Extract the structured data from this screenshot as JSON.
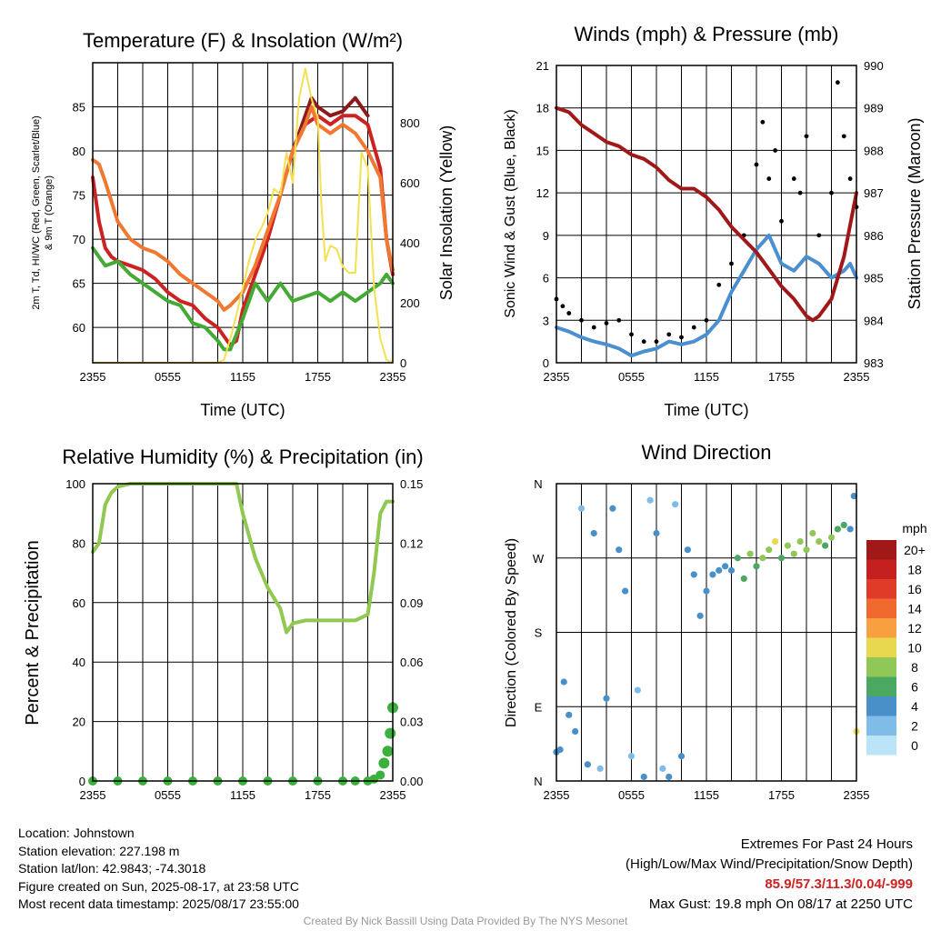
{
  "info": {
    "location": "Location: Johnstown",
    "elevation": "Station elevation: 227.198 m",
    "latlon": "Station lat/lon: 42.9843; -74.3018",
    "created": "Figure created on Sun, 2025-08-17, at 23:58 UTC",
    "recent": "Most recent data timestamp: 2025/08/17 23:55:00"
  },
  "extremes": {
    "title": "Extremes For Past 24 Hours",
    "subtitle": "(High/Low/Max Wind/Precipitation/Snow Depth)",
    "values": "85.9/57.3/11.3/0.04/-999",
    "gust": "Max Gust: 19.8 mph On 08/17 at 2250 UTC"
  },
  "credit": "Created By Nick Bassill Using Data Provided By The NYS Mesonet",
  "colors": {
    "temp": "#cc2222",
    "dew": "#44aa33",
    "hiwc": "#8b1a1a",
    "temp9m": "#f07830",
    "solar": "#f5e050",
    "wind": "#4a90d0",
    "gust": "#000000",
    "pressure": "#a01818",
    "rh": "#90c850",
    "precip": "#3cb03c"
  },
  "chart_data": [
    {
      "type": "line",
      "title": "Temperature (F) & Insolation (W/m²)",
      "xlabel": "Time (UTC)",
      "ylabel_left": "2m T, Td, HI/WC (Red, Green, Scarlet/Blue) & 9m T (Orange)",
      "ylabel_right": "Solar Insolation (Yellow)",
      "x_ticks": [
        "2355",
        "0555",
        "1155",
        "1755",
        "2355"
      ],
      "ylim": [
        56,
        90
      ],
      "y_ticks": [
        60,
        65,
        70,
        75,
        80,
        85
      ],
      "ylim_right": [
        0,
        1000
      ],
      "y_ticks_right": [
        0,
        200,
        400,
        600,
        800
      ],
      "series": [
        {
          "name": "2m T",
          "axis": "left",
          "color": "#cc2222",
          "x": [
            0,
            0.5,
            1,
            1.5,
            2,
            3,
            4,
            5,
            6,
            7,
            8,
            9,
            10,
            11,
            11.5,
            12,
            13,
            14,
            15,
            16,
            17,
            18,
            19,
            20,
            21,
            22,
            23,
            23.5,
            24
          ],
          "values": [
            77,
            72,
            69,
            68,
            67.5,
            67,
            66.5,
            65.5,
            64,
            63,
            62.5,
            61,
            60,
            58,
            58.5,
            62,
            66,
            70,
            75,
            80,
            83,
            84,
            83,
            84,
            84,
            83,
            78,
            70,
            66
          ]
        },
        {
          "name": "Td",
          "axis": "left",
          "color": "#44aa33",
          "x": [
            0,
            1,
            2,
            3,
            4,
            5,
            6,
            7,
            8,
            9,
            10,
            10.5,
            11,
            12,
            13,
            14,
            15,
            16,
            17,
            18,
            19,
            20,
            21,
            22,
            23,
            23.5,
            24
          ],
          "values": [
            69,
            67,
            67.5,
            66,
            65,
            64,
            63,
            62.5,
            60.5,
            60,
            58.5,
            57.5,
            57.5,
            61,
            65,
            63,
            65,
            63,
            63.5,
            64,
            63,
            64,
            63,
            64,
            65,
            66,
            65
          ]
        },
        {
          "name": "HI/WC",
          "axis": "left",
          "color": "#8b1a1a",
          "x": [
            16,
            17,
            17.5,
            18,
            19,
            20,
            21,
            22
          ],
          "values": [
            80,
            84,
            86,
            85,
            84,
            84.5,
            86,
            84
          ]
        },
        {
          "name": "9m T",
          "axis": "left",
          "color": "#f07830",
          "x": [
            0,
            0.5,
            1,
            2,
            3,
            4,
            5,
            6,
            7,
            8,
            9,
            10,
            10.5,
            11,
            12,
            13,
            14,
            15,
            16,
            17,
            17.5,
            18,
            19,
            20,
            21,
            22,
            23,
            23.5,
            24
          ],
          "values": [
            79,
            78.5,
            76.5,
            72,
            70,
            69,
            68.5,
            67.5,
            66,
            65,
            64,
            63,
            62,
            62.5,
            64,
            67,
            71,
            75,
            80,
            83,
            85,
            83,
            82,
            83,
            82,
            80,
            77,
            70,
            66.5
          ]
        },
        {
          "name": "Solar",
          "axis": "right",
          "color": "#f5e050",
          "x": [
            0,
            10,
            10.5,
            11,
            11.5,
            12,
            12.5,
            13,
            13.5,
            14,
            14.5,
            15,
            15.5,
            16,
            16.5,
            17,
            17.5,
            18,
            18.3,
            18.6,
            19,
            19.5,
            20,
            20.5,
            21,
            21.5,
            22,
            22.5,
            23,
            23.5,
            24
          ],
          "values": [
            0,
            0,
            10,
            80,
            160,
            250,
            340,
            410,
            450,
            500,
            580,
            560,
            700,
            600,
            880,
            980,
            880,
            820,
            520,
            340,
            390,
            380,
            320,
            300,
            300,
            700,
            650,
            250,
            80,
            10,
            0
          ]
        }
      ]
    },
    {
      "type": "line",
      "title": "Winds (mph) & Pressure (mb)",
      "xlabel": "Time (UTC)",
      "ylabel_left": "Sonic Wind & Gust (Blue, Black)",
      "ylabel_right": "Station Pressure (Maroon)",
      "x_ticks": [
        "2355",
        "0555",
        "1155",
        "1755",
        "2355"
      ],
      "ylim": [
        0,
        21
      ],
      "y_ticks": [
        0,
        3,
        6,
        9,
        12,
        15,
        18,
        21
      ],
      "ylim_right": [
        983,
        990
      ],
      "y_ticks_right": [
        983,
        984,
        985,
        986,
        987,
        988,
        989,
        990
      ],
      "series": [
        {
          "name": "Sonic Wind",
          "axis": "left",
          "color": "#4a90d0",
          "x": [
            0,
            1,
            2,
            3,
            4,
            5,
            6,
            7,
            8,
            9,
            10,
            11,
            12,
            13,
            13.5,
            14,
            15,
            16,
            17,
            18,
            19,
            20,
            21,
            22,
            23,
            23.5,
            24
          ],
          "values": [
            2.5,
            2.2,
            1.8,
            1.5,
            1.3,
            1,
            0.5,
            0.8,
            1,
            1.5,
            1.3,
            1.5,
            2,
            3,
            4,
            5,
            6.5,
            8,
            9,
            7,
            6.5,
            7.5,
            7,
            6,
            6.5,
            7,
            6
          ]
        },
        {
          "name": "Gust",
          "axis": "left",
          "color": "#000000",
          "style": "dots",
          "x": [
            0,
            0.5,
            1,
            2,
            3,
            4,
            5,
            6,
            7,
            8,
            9,
            10,
            11,
            12,
            13,
            14,
            15,
            16,
            16.5,
            17,
            17.5,
            18,
            19,
            19.5,
            20,
            21,
            22,
            22.5,
            23,
            23.5,
            24
          ],
          "values": [
            4.5,
            4,
            3.5,
            3,
            2.5,
            2.8,
            3,
            2,
            1.5,
            1.5,
            2,
            1.8,
            2.5,
            3,
            5.5,
            7,
            9,
            14,
            17,
            13,
            15,
            10,
            13,
            12,
            16,
            9,
            12,
            19.8,
            16,
            13,
            11
          ]
        },
        {
          "name": "Pressure",
          "axis": "right",
          "color": "#a01818",
          "x": [
            0,
            1,
            2,
            3,
            4,
            5,
            6,
            7,
            8,
            9,
            10,
            11,
            12,
            13,
            14,
            15,
            16,
            17,
            18,
            19,
            20,
            20.5,
            21,
            22,
            23,
            24
          ],
          "values": [
            989,
            988.9,
            988.6,
            988.4,
            988.2,
            988.1,
            987.9,
            987.8,
            987.6,
            987.3,
            987.1,
            987.1,
            986.9,
            986.6,
            986.2,
            985.9,
            985.6,
            985.2,
            984.8,
            984.5,
            984.1,
            984.0,
            984.1,
            984.5,
            985.5,
            987.0
          ]
        }
      ]
    },
    {
      "type": "line",
      "title": "Relative Humidity (%) & Precipitation (in)",
      "ylabel_left": "Percent & Precipitation",
      "x_ticks": [
        "2355",
        "0555",
        "1155",
        "1755",
        "2355"
      ],
      "ylim": [
        0,
        100
      ],
      "y_ticks": [
        0,
        20,
        40,
        60,
        80,
        100
      ],
      "ylim_right": [
        0,
        0.15
      ],
      "y_ticks_right": [
        "0.00",
        "0.03",
        "0.06",
        "0.09",
        "0.12",
        "0.15"
      ],
      "series": [
        {
          "name": "RH",
          "axis": "left",
          "color": "#90c850",
          "x": [
            0,
            0.5,
            1,
            1.5,
            2,
            3,
            4,
            5,
            6,
            7,
            8,
            9,
            10,
            11,
            11.5,
            12,
            13,
            14,
            15,
            15.5,
            16,
            17,
            18,
            19,
            20,
            21,
            22,
            22.5,
            23,
            23.5,
            24
          ],
          "values": [
            77,
            80,
            93,
            97,
            99,
            100,
            100,
            100,
            100,
            100,
            100,
            100,
            100,
            100,
            100,
            90,
            75,
            65,
            58,
            50,
            53,
            54,
            54,
            54,
            54,
            54,
            56,
            70,
            90,
            94,
            94
          ]
        },
        {
          "name": "Precip",
          "axis": "right",
          "color": "#3cb03c",
          "x": [
            0,
            2,
            4,
            6,
            8,
            10,
            12,
            14,
            16,
            18,
            20,
            21,
            22,
            22.5,
            23,
            23.3,
            23.6,
            23.8,
            24
          ],
          "values": [
            0,
            0,
            0,
            0,
            0,
            0,
            0,
            0,
            0,
            0,
            0,
            0,
            0,
            0.001,
            0.003,
            0.009,
            0.015,
            0.024,
            0.037
          ]
        }
      ]
    },
    {
      "type": "scatter",
      "title": "Wind Direction",
      "ylabel_left": "Direction (Colored By Speed)",
      "x_ticks": [
        "2355",
        "0555",
        "1155",
        "1755",
        "2355"
      ],
      "y_ticks": [
        "N",
        "E",
        "S",
        "W",
        "N"
      ],
      "ylim": [
        0,
        360
      ],
      "colorbar": {
        "title": "mph",
        "labels": [
          "20+",
          "18",
          "16",
          "14",
          "12",
          "10",
          "8",
          "6",
          "4",
          "2",
          "0"
        ],
        "colors": [
          "#a01818",
          "#c42020",
          "#e03a28",
          "#f06a30",
          "#f8a040",
          "#e8d850",
          "#90c858",
          "#4aa860",
          "#4a90c8",
          "#80bce8",
          "#bce4f8"
        ]
      },
      "series": [
        {
          "name": "Direction",
          "x": [
            0,
            0.3,
            0.6,
            1,
            1.5,
            2,
            2.5,
            3,
            3.5,
            4,
            4.5,
            5,
            5.5,
            6,
            6.5,
            7,
            7.5,
            8,
            8.5,
            9,
            9.5,
            10,
            10.5,
            11,
            11.5,
            12,
            12.5,
            13,
            13.5,
            14,
            14.5,
            15,
            15.5,
            16,
            16.5,
            17,
            17.5,
            18,
            18.5,
            19,
            19.5,
            20,
            20.5,
            21,
            21.5,
            22,
            22.5,
            23,
            23.5,
            23.8,
            24
          ],
          "values": [
            35,
            38,
            120,
            80,
            60,
            330,
            20,
            300,
            15,
            100,
            330,
            280,
            230,
            30,
            110,
            5,
            340,
            300,
            15,
            5,
            335,
            30,
            280,
            250,
            200,
            230,
            250,
            255,
            260,
            255,
            270,
            245,
            275,
            260,
            270,
            280,
            290,
            270,
            285,
            275,
            290,
            280,
            300,
            290,
            285,
            295,
            305,
            310,
            305,
            345,
            60
          ],
          "speed": [
            3,
            3,
            3,
            3,
            3,
            2,
            3,
            3,
            2,
            3,
            3,
            3,
            3,
            2,
            2,
            3,
            2,
            3,
            2,
            3,
            2,
            3,
            3,
            3,
            3,
            4,
            3,
            4,
            4,
            4,
            6,
            5,
            7,
            6,
            8,
            7,
            9,
            6,
            8,
            7,
            7,
            8,
            8,
            7,
            6,
            7,
            6,
            6,
            4,
            4,
            9
          ]
        }
      ]
    }
  ]
}
